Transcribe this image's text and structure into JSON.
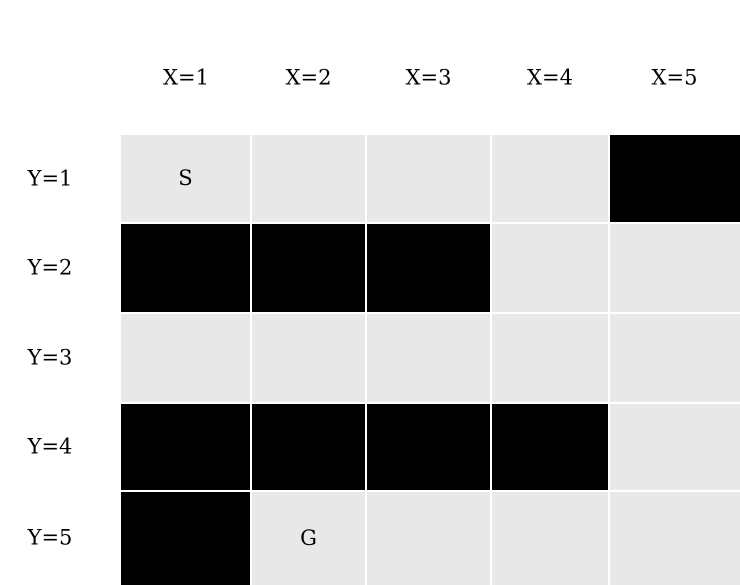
{
  "columns": [
    "X=1",
    "X=2",
    "X=3",
    "X=4",
    "X=5"
  ],
  "rows": [
    "Y=1",
    "Y=2",
    "Y=3",
    "Y=4",
    "Y=5"
  ],
  "grid": [
    [
      "open",
      "open",
      "open",
      "open",
      "wall"
    ],
    [
      "wall",
      "wall",
      "wall",
      "open",
      "open"
    ],
    [
      "open",
      "open",
      "open",
      "open",
      "open"
    ],
    [
      "wall",
      "wall",
      "wall",
      "wall",
      "open"
    ],
    [
      "wall",
      "open",
      "open",
      "open",
      "open"
    ]
  ],
  "markers": [
    {
      "x": 1,
      "y": 1,
      "label": "S"
    },
    {
      "x": 2,
      "y": 5,
      "label": "G"
    }
  ],
  "colors": {
    "open": "#e8e8e8",
    "wall": "#000000",
    "gridline": "#ffffff",
    "background": "#ffffff",
    "text": "#000000"
  }
}
